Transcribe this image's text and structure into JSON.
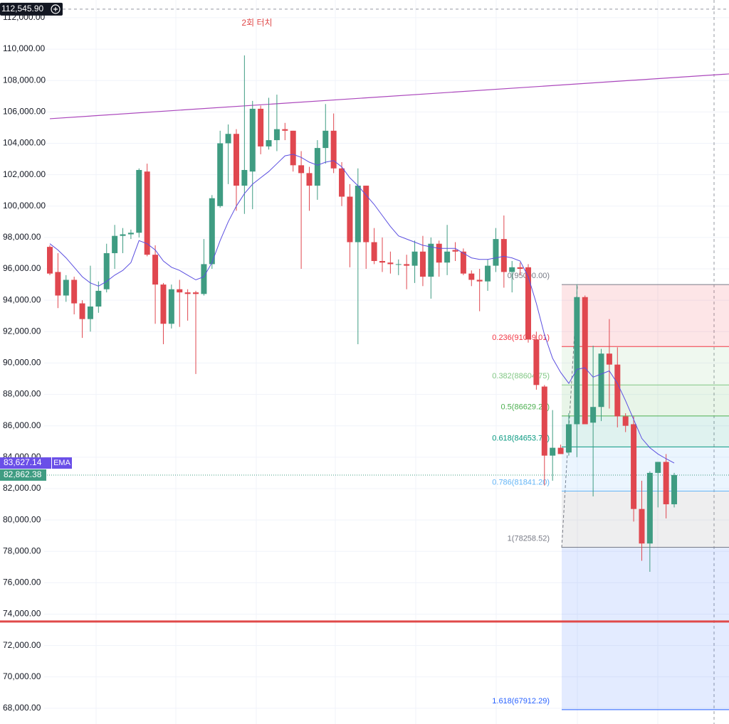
{
  "chart_data": {
    "type": "candlestick",
    "annotation": "2회 터치",
    "ylim": [
      67000,
      113130
    ],
    "yticks": [
      {
        "value": 112000,
        "label": "112,000.00"
      },
      {
        "value": 110000,
        "label": "110,000.00"
      },
      {
        "value": 108000,
        "label": "108,000.00"
      },
      {
        "value": 106000,
        "label": "106,000.00"
      },
      {
        "value": 104000,
        "label": "104,000.00"
      },
      {
        "value": 102000,
        "label": "102,000.00"
      },
      {
        "value": 100000,
        "label": "100,000.00"
      },
      {
        "value": 98000,
        "label": "98,000.00"
      },
      {
        "value": 96000,
        "label": "96,000.00"
      },
      {
        "value": 94000,
        "label": "94,000.00"
      },
      {
        "value": 92000,
        "label": "92,000.00"
      },
      {
        "value": 90000,
        "label": "90,000.00"
      },
      {
        "value": 88000,
        "label": "88,000.00"
      },
      {
        "value": 86000,
        "label": "86,000.00"
      },
      {
        "value": 84000,
        "label": "84,000.00"
      },
      {
        "value": 82000,
        "label": "82,000.00"
      },
      {
        "value": 80000,
        "label": "80,000.00"
      },
      {
        "value": 78000,
        "label": "78,000.00"
      },
      {
        "value": 76000,
        "label": "76,000.00"
      },
      {
        "value": 74000,
        "label": "74,000.00"
      },
      {
        "value": 72000,
        "label": "72,000.00"
      },
      {
        "value": 70000,
        "label": "70,000.00"
      },
      {
        "value": 68000,
        "label": "68,000.00"
      }
    ],
    "grid": true,
    "up_color": "#3f9c82",
    "down_color": "#e0474f",
    "open": [
      97400,
      95800,
      94300,
      95300,
      93800,
      92800,
      93600,
      94700,
      97000,
      98100,
      98200,
      98300,
      102200,
      96900,
      95000,
      92500,
      94700,
      94500,
      94500,
      94400,
      96300,
      100000,
      104000,
      104600,
      101300,
      102200,
      106200,
      103800,
      104200,
      104900,
      104800,
      102600,
      102100,
      101300,
      103700,
      104800,
      102400,
      100600,
      97700,
      101300,
      97700,
      96500,
      96400,
      96300,
      96300,
      96200,
      97100,
      95500,
      97600,
      96400,
      97200,
      97100,
      95700,
      95300,
      95200,
      96200,
      97900,
      95800,
      96100,
      96100,
      91500,
      88500,
      84100,
      84600,
      84300,
      86100,
      94200,
      86200,
      87200,
      90600,
      89900,
      86600,
      86100,
      80700,
      78500,
      83000,
      83700,
      81000
    ],
    "high": [
      97500,
      97000,
      95600,
      95500,
      94000,
      96200,
      95200,
      97600,
      98800,
      98600,
      98500,
      102400,
      102700,
      97500,
      95100,
      95000,
      95300,
      94700,
      94600,
      97900,
      100700,
      104800,
      105200,
      104900,
      109600,
      106700,
      106400,
      106900,
      107100,
      105300,
      104800,
      103500,
      102500,
      104200,
      106500,
      105900,
      102800,
      101400,
      102400,
      101300,
      98600,
      98000,
      97100,
      96600,
      96900,
      97800,
      98100,
      98000,
      97800,
      98800,
      97700,
      97300,
      95900,
      96000,
      96600,
      98600,
      99400,
      96500,
      96400,
      96300,
      92000,
      88600,
      87000,
      84800,
      86800,
      95000,
      94300,
      91100,
      90900,
      92800,
      91000,
      86800,
      86600,
      82500,
      83100,
      83700,
      84200,
      83000
    ],
    "low": [
      95600,
      93500,
      93900,
      93100,
      91600,
      92000,
      93200,
      94500,
      96000,
      97000,
      97900,
      98000,
      96800,
      92500,
      91200,
      92200,
      92300,
      92700,
      89300,
      94300,
      96000,
      99900,
      101400,
      99700,
      99500,
      99800,
      103300,
      103600,
      103500,
      104200,
      102200,
      96000,
      99700,
      100400,
      102700,
      102100,
      100000,
      96100,
      91200,
      96000,
      96300,
      95800,
      95700,
      95600,
      94700,
      95100,
      94900,
      94100,
      95500,
      95600,
      96500,
      95600,
      94900,
      93300,
      94600,
      95800,
      94800,
      94500,
      95600,
      91300,
      88300,
      82200,
      82500,
      84200,
      84100,
      84000,
      86100,
      81500,
      86300,
      87100,
      85900,
      85600,
      79900,
      77400,
      76700,
      80800,
      80100,
      80800
    ],
    "close": [
      95700,
      94300,
      95300,
      93800,
      92800,
      93600,
      94600,
      97000,
      98100,
      98200,
      98300,
      102300,
      96900,
      95000,
      92500,
      94700,
      94500,
      94400,
      94400,
      96300,
      100500,
      104000,
      104600,
      101300,
      102300,
      106200,
      103800,
      104200,
      104900,
      104800,
      102600,
      102100,
      101300,
      103700,
      104800,
      102400,
      100600,
      97700,
      101300,
      97700,
      96500,
      96400,
      96300,
      96300,
      96200,
      97100,
      95500,
      97600,
      96400,
      97100,
      97100,
      95700,
      95300,
      95200,
      96200,
      97900,
      95800,
      96100,
      96000,
      91500,
      88600,
      84100,
      84600,
      84200,
      86100,
      94200,
      86100,
      87200,
      90600,
      89900,
      86600,
      86000,
      80700,
      78500,
      83000,
      83700,
      81000,
      82862.38
    ],
    "close_label": "82,862.38",
    "ema": {
      "name": "EMA",
      "color": "#5b4fe0",
      "last_label": "83,627.14",
      "values": [
        97600,
        97200,
        96700,
        96100,
        95500,
        95100,
        94900,
        95200,
        95600,
        95900,
        96400,
        97800,
        97600,
        97200,
        96500,
        96100,
        95900,
        95600,
        95300,
        95500,
        96400,
        97800,
        99000,
        100000,
        100800,
        101400,
        101800,
        102200,
        102700,
        103200,
        103300,
        103100,
        102800,
        102600,
        102800,
        102900,
        102500,
        101800,
        101300,
        100700,
        100100,
        99400,
        98700,
        98100,
        97900,
        97700,
        97500,
        97400,
        97300,
        97300,
        97300,
        97000,
        96700,
        96600,
        96600,
        96700,
        96800,
        96700,
        96500,
        95500,
        93800,
        91800,
        90300,
        89400,
        88700,
        89600,
        89700,
        89100,
        89300,
        89500,
        88700,
        87600,
        86400,
        85200,
        84600,
        84200,
        83900,
        83627.14
      ]
    },
    "crosshair": {
      "value": 112545.9,
      "label": "112,545.90"
    },
    "trendline": {
      "color": "#ab47bc",
      "values": [
        105566,
        108420
      ]
    },
    "support": {
      "value": 73530,
      "color": "#e04a4a"
    },
    "fib": {
      "levels": [
        {
          "value": 95000,
          "label": "0(95000.00)",
          "color": "#787b86"
        },
        {
          "value": 91049.01,
          "label": "0.236(91049.01)",
          "color": "#f23645"
        },
        {
          "value": 88604.75,
          "label": "0.382(88604.75)",
          "color": "#81c784"
        },
        {
          "value": 86629.26,
          "label": "0.5(86629.26)",
          "color": "#4caf50"
        },
        {
          "value": 84653.77,
          "label": "0.618(84653.77)",
          "color": "#089981"
        },
        {
          "value": 81841.2,
          "label": "0.786(81841.20)",
          "color": "#64b5f6"
        },
        {
          "value": 78258.52,
          "label": "1(78258.52)",
          "color": "#787b86"
        },
        {
          "value": 67912.29,
          "label": "1.618(67912.29)",
          "color": "#2962ff"
        }
      ]
    }
  }
}
